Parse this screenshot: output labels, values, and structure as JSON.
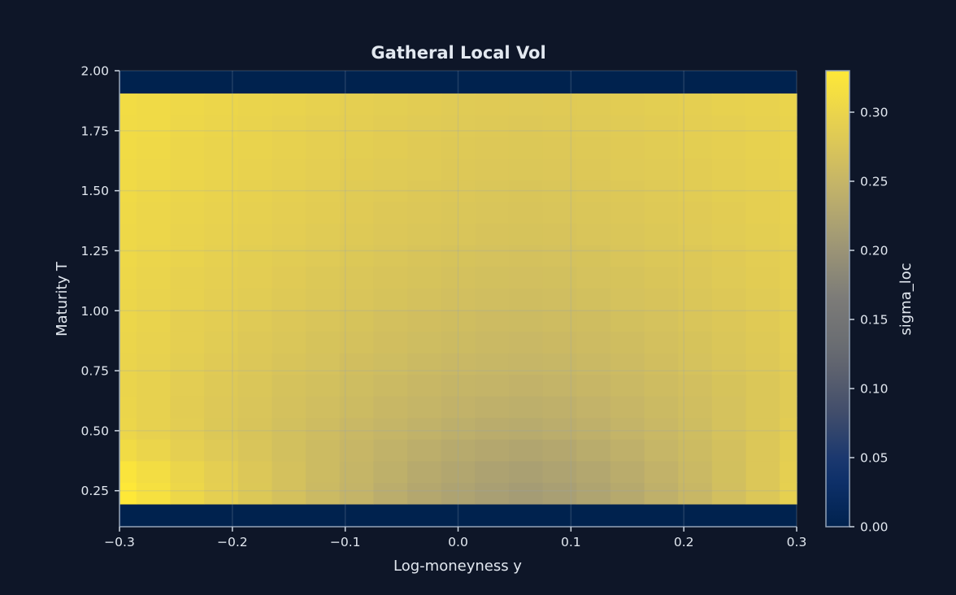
{
  "chart_data": {
    "type": "heatmap",
    "title": "Gatheral Local Vol",
    "xlabel": "Log-moneyness y",
    "ylabel": "Maturity T",
    "colorbar_label": "sigma_loc",
    "colormap": "cividis",
    "vmin": 0.0,
    "vmax": 0.33,
    "xlim": [
      -0.3,
      0.3
    ],
    "ylim": [
      0.1,
      2.0
    ],
    "grid": true,
    "xticks": [
      -0.3,
      -0.2,
      -0.1,
      0.0,
      0.1,
      0.2,
      0.3
    ],
    "xtick_labels": [
      "−0.3",
      "−0.2",
      "−0.1",
      "0.0",
      "0.1",
      "0.2",
      "0.3"
    ],
    "yticks": [
      0.25,
      0.5,
      0.75,
      1.0,
      1.25,
      1.5,
      1.75,
      2.0
    ],
    "ytick_labels": [
      "0.25",
      "0.50",
      "0.75",
      "1.00",
      "1.25",
      "1.50",
      "1.75",
      "2.00"
    ],
    "colorbar_ticks": [
      0.0,
      0.05,
      0.1,
      0.15,
      0.2,
      0.25,
      0.3
    ],
    "colorbar_tick_labels": [
      "0.00",
      "0.05",
      "0.10",
      "0.15",
      "0.20",
      "0.25",
      "0.30"
    ],
    "x": [
      -0.3,
      -0.27,
      -0.24,
      -0.21,
      -0.18,
      -0.15,
      -0.12,
      -0.09,
      -0.06,
      -0.03,
      0.0,
      0.03,
      0.06,
      0.09,
      0.12,
      0.15,
      0.18,
      0.21,
      0.24,
      0.27,
      0.3
    ],
    "y": [
      0.24,
      0.33,
      0.42,
      0.51,
      0.6,
      0.69,
      0.78,
      0.87,
      0.96,
      1.05,
      1.14,
      1.23,
      1.32,
      1.41,
      1.5,
      1.59,
      1.68,
      1.77,
      1.86
    ],
    "z": [
      [
        0.33,
        0.317,
        0.303,
        0.291,
        0.279,
        0.268,
        0.257,
        0.247,
        0.237,
        0.229,
        0.222,
        0.216,
        0.212,
        0.216,
        0.224,
        0.232,
        0.242,
        0.253,
        0.265,
        0.278,
        0.292
      ],
      [
        0.324,
        0.312,
        0.3,
        0.289,
        0.278,
        0.268,
        0.258,
        0.249,
        0.241,
        0.233,
        0.227,
        0.221,
        0.218,
        0.222,
        0.228,
        0.236,
        0.245,
        0.255,
        0.266,
        0.278,
        0.29
      ],
      [
        0.31,
        0.3,
        0.291,
        0.282,
        0.274,
        0.266,
        0.258,
        0.251,
        0.244,
        0.238,
        0.233,
        0.229,
        0.226,
        0.229,
        0.235,
        0.242,
        0.25,
        0.258,
        0.267,
        0.278,
        0.288
      ],
      [
        0.302,
        0.294,
        0.287,
        0.279,
        0.273,
        0.266,
        0.26,
        0.254,
        0.249,
        0.244,
        0.24,
        0.236,
        0.234,
        0.237,
        0.242,
        0.247,
        0.254,
        0.261,
        0.269,
        0.277,
        0.286
      ],
      [
        0.3,
        0.293,
        0.286,
        0.28,
        0.274,
        0.268,
        0.263,
        0.258,
        0.253,
        0.249,
        0.245,
        0.242,
        0.24,
        0.242,
        0.246,
        0.251,
        0.257,
        0.263,
        0.269,
        0.277,
        0.284
      ],
      [
        0.299,
        0.293,
        0.287,
        0.281,
        0.276,
        0.27,
        0.266,
        0.261,
        0.257,
        0.253,
        0.249,
        0.247,
        0.245,
        0.247,
        0.251,
        0.255,
        0.26,
        0.265,
        0.271,
        0.277,
        0.284
      ],
      [
        0.299,
        0.293,
        0.288,
        0.283,
        0.278,
        0.273,
        0.269,
        0.264,
        0.261,
        0.257,
        0.254,
        0.252,
        0.25,
        0.252,
        0.255,
        0.259,
        0.264,
        0.269,
        0.274,
        0.28,
        0.286
      ],
      [
        0.3,
        0.295,
        0.29,
        0.285,
        0.28,
        0.276,
        0.271,
        0.268,
        0.264,
        0.261,
        0.258,
        0.255,
        0.254,
        0.256,
        0.259,
        0.262,
        0.267,
        0.271,
        0.276,
        0.281,
        0.287
      ],
      [
        0.301,
        0.296,
        0.291,
        0.287,
        0.282,
        0.278,
        0.274,
        0.271,
        0.267,
        0.264,
        0.262,
        0.259,
        0.258,
        0.26,
        0.262,
        0.266,
        0.269,
        0.274,
        0.278,
        0.283,
        0.288
      ],
      [
        0.302,
        0.297,
        0.293,
        0.289,
        0.285,
        0.281,
        0.277,
        0.274,
        0.271,
        0.268,
        0.265,
        0.263,
        0.262,
        0.263,
        0.266,
        0.269,
        0.272,
        0.276,
        0.28,
        0.284,
        0.289
      ],
      [
        0.303,
        0.299,
        0.294,
        0.29,
        0.287,
        0.283,
        0.279,
        0.276,
        0.273,
        0.271,
        0.268,
        0.266,
        0.265,
        0.266,
        0.269,
        0.271,
        0.275,
        0.278,
        0.282,
        0.286,
        0.29
      ],
      [
        0.304,
        0.3,
        0.296,
        0.292,
        0.288,
        0.285,
        0.282,
        0.279,
        0.276,
        0.273,
        0.271,
        0.269,
        0.268,
        0.269,
        0.271,
        0.274,
        0.277,
        0.28,
        0.283,
        0.287,
        0.291
      ],
      [
        0.305,
        0.301,
        0.297,
        0.294,
        0.29,
        0.287,
        0.284,
        0.281,
        0.278,
        0.276,
        0.274,
        0.272,
        0.271,
        0.272,
        0.274,
        0.276,
        0.279,
        0.282,
        0.285,
        0.288,
        0.292
      ],
      [
        0.306,
        0.302,
        0.299,
        0.295,
        0.292,
        0.289,
        0.286,
        0.283,
        0.28,
        0.278,
        0.276,
        0.274,
        0.273,
        0.274,
        0.276,
        0.278,
        0.281,
        0.283,
        0.286,
        0.29,
        0.293
      ],
      [
        0.307,
        0.303,
        0.3,
        0.296,
        0.293,
        0.29,
        0.287,
        0.284,
        0.282,
        0.28,
        0.278,
        0.276,
        0.275,
        0.276,
        0.278,
        0.28,
        0.282,
        0.285,
        0.288,
        0.291,
        0.294
      ],
      [
        0.308,
        0.305,
        0.301,
        0.298,
        0.295,
        0.292,
        0.289,
        0.286,
        0.284,
        0.282,
        0.28,
        0.278,
        0.277,
        0.278,
        0.28,
        0.282,
        0.284,
        0.286,
        0.289,
        0.292,
        0.295
      ],
      [
        0.309,
        0.306,
        0.302,
        0.299,
        0.296,
        0.293,
        0.29,
        0.288,
        0.286,
        0.283,
        0.281,
        0.28,
        0.279,
        0.28,
        0.281,
        0.283,
        0.285,
        0.288,
        0.29,
        0.293,
        0.296
      ],
      [
        0.31,
        0.307,
        0.303,
        0.3,
        0.297,
        0.294,
        0.291,
        0.289,
        0.286,
        0.284,
        0.282,
        0.281,
        0.28,
        0.281,
        0.282,
        0.284,
        0.286,
        0.289,
        0.291,
        0.294,
        0.297
      ],
      [
        0.311,
        0.308,
        0.304,
        0.301,
        0.298,
        0.296,
        0.293,
        0.291,
        0.288,
        0.286,
        0.284,
        0.283,
        0.282,
        0.283,
        0.284,
        0.286,
        0.288,
        0.29,
        0.293,
        0.295,
        0.298
      ]
    ],
    "colors": {
      "background": "#0e1628",
      "axes_facecolor": "#00224e",
      "text": "#e2e8f0",
      "spine": "#94a3b8"
    }
  }
}
